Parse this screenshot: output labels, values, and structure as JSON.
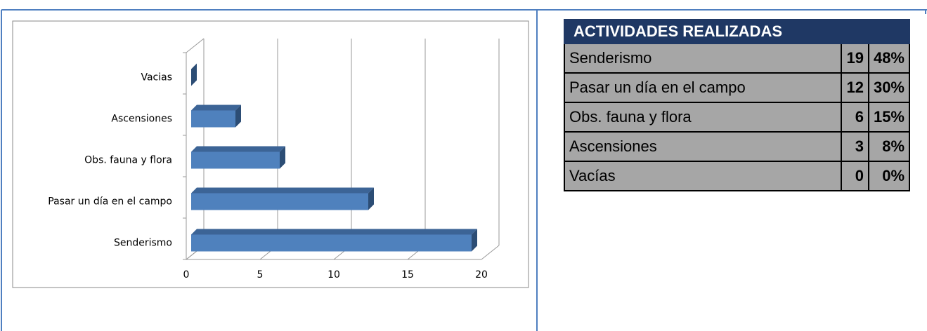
{
  "chart_data": {
    "type": "bar",
    "orientation": "horizontal",
    "categories": [
      "Senderismo",
      "Pasar un día en el campo",
      "Obs. fauna y flora",
      "Ascensiones",
      "Vacias"
    ],
    "values": [
      19,
      12,
      6,
      3,
      0
    ],
    "color": "#4f81bd",
    "xlim": [
      0,
      20
    ],
    "xticks": [
      0,
      5,
      10,
      15,
      20
    ],
    "grid": true
  },
  "table": {
    "title": "ACTIVIDADES REALIZADAS",
    "rows": [
      [
        "Senderismo",
        "19",
        "48%"
      ],
      [
        "Pasar un día en el campo",
        "12",
        "30%"
      ],
      [
        "Obs. fauna y flora",
        "6",
        "15%"
      ],
      [
        "Ascensiones",
        "3",
        "8%"
      ],
      [
        "Vacías",
        "0",
        "0%"
      ]
    ]
  }
}
